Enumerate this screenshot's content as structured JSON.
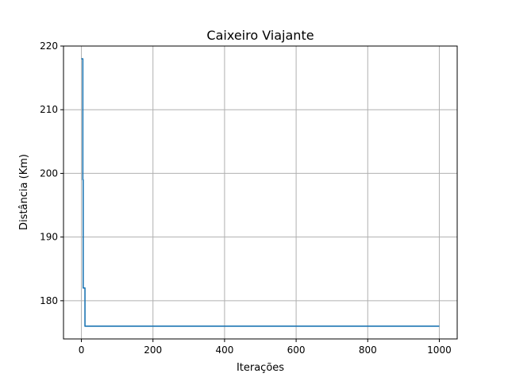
{
  "chart_data": {
    "type": "line",
    "title": "Caixeiro Viajante",
    "xlabel": "Iterações",
    "ylabel": "Distância (Km)",
    "xlim": [
      -50,
      1050
    ],
    "ylim": [
      174,
      220
    ],
    "xticks": [
      0,
      200,
      400,
      600,
      800,
      1000
    ],
    "yticks": [
      180,
      190,
      200,
      210,
      220
    ],
    "grid": true,
    "series": [
      {
        "color": "#1f77b4",
        "x": [
          0,
          1,
          1,
          4,
          4,
          5,
          5,
          10,
          10,
          1000
        ],
        "y": [
          218,
          218,
          218,
          218,
          199,
          199,
          182,
          182,
          176,
          176
        ]
      }
    ]
  }
}
